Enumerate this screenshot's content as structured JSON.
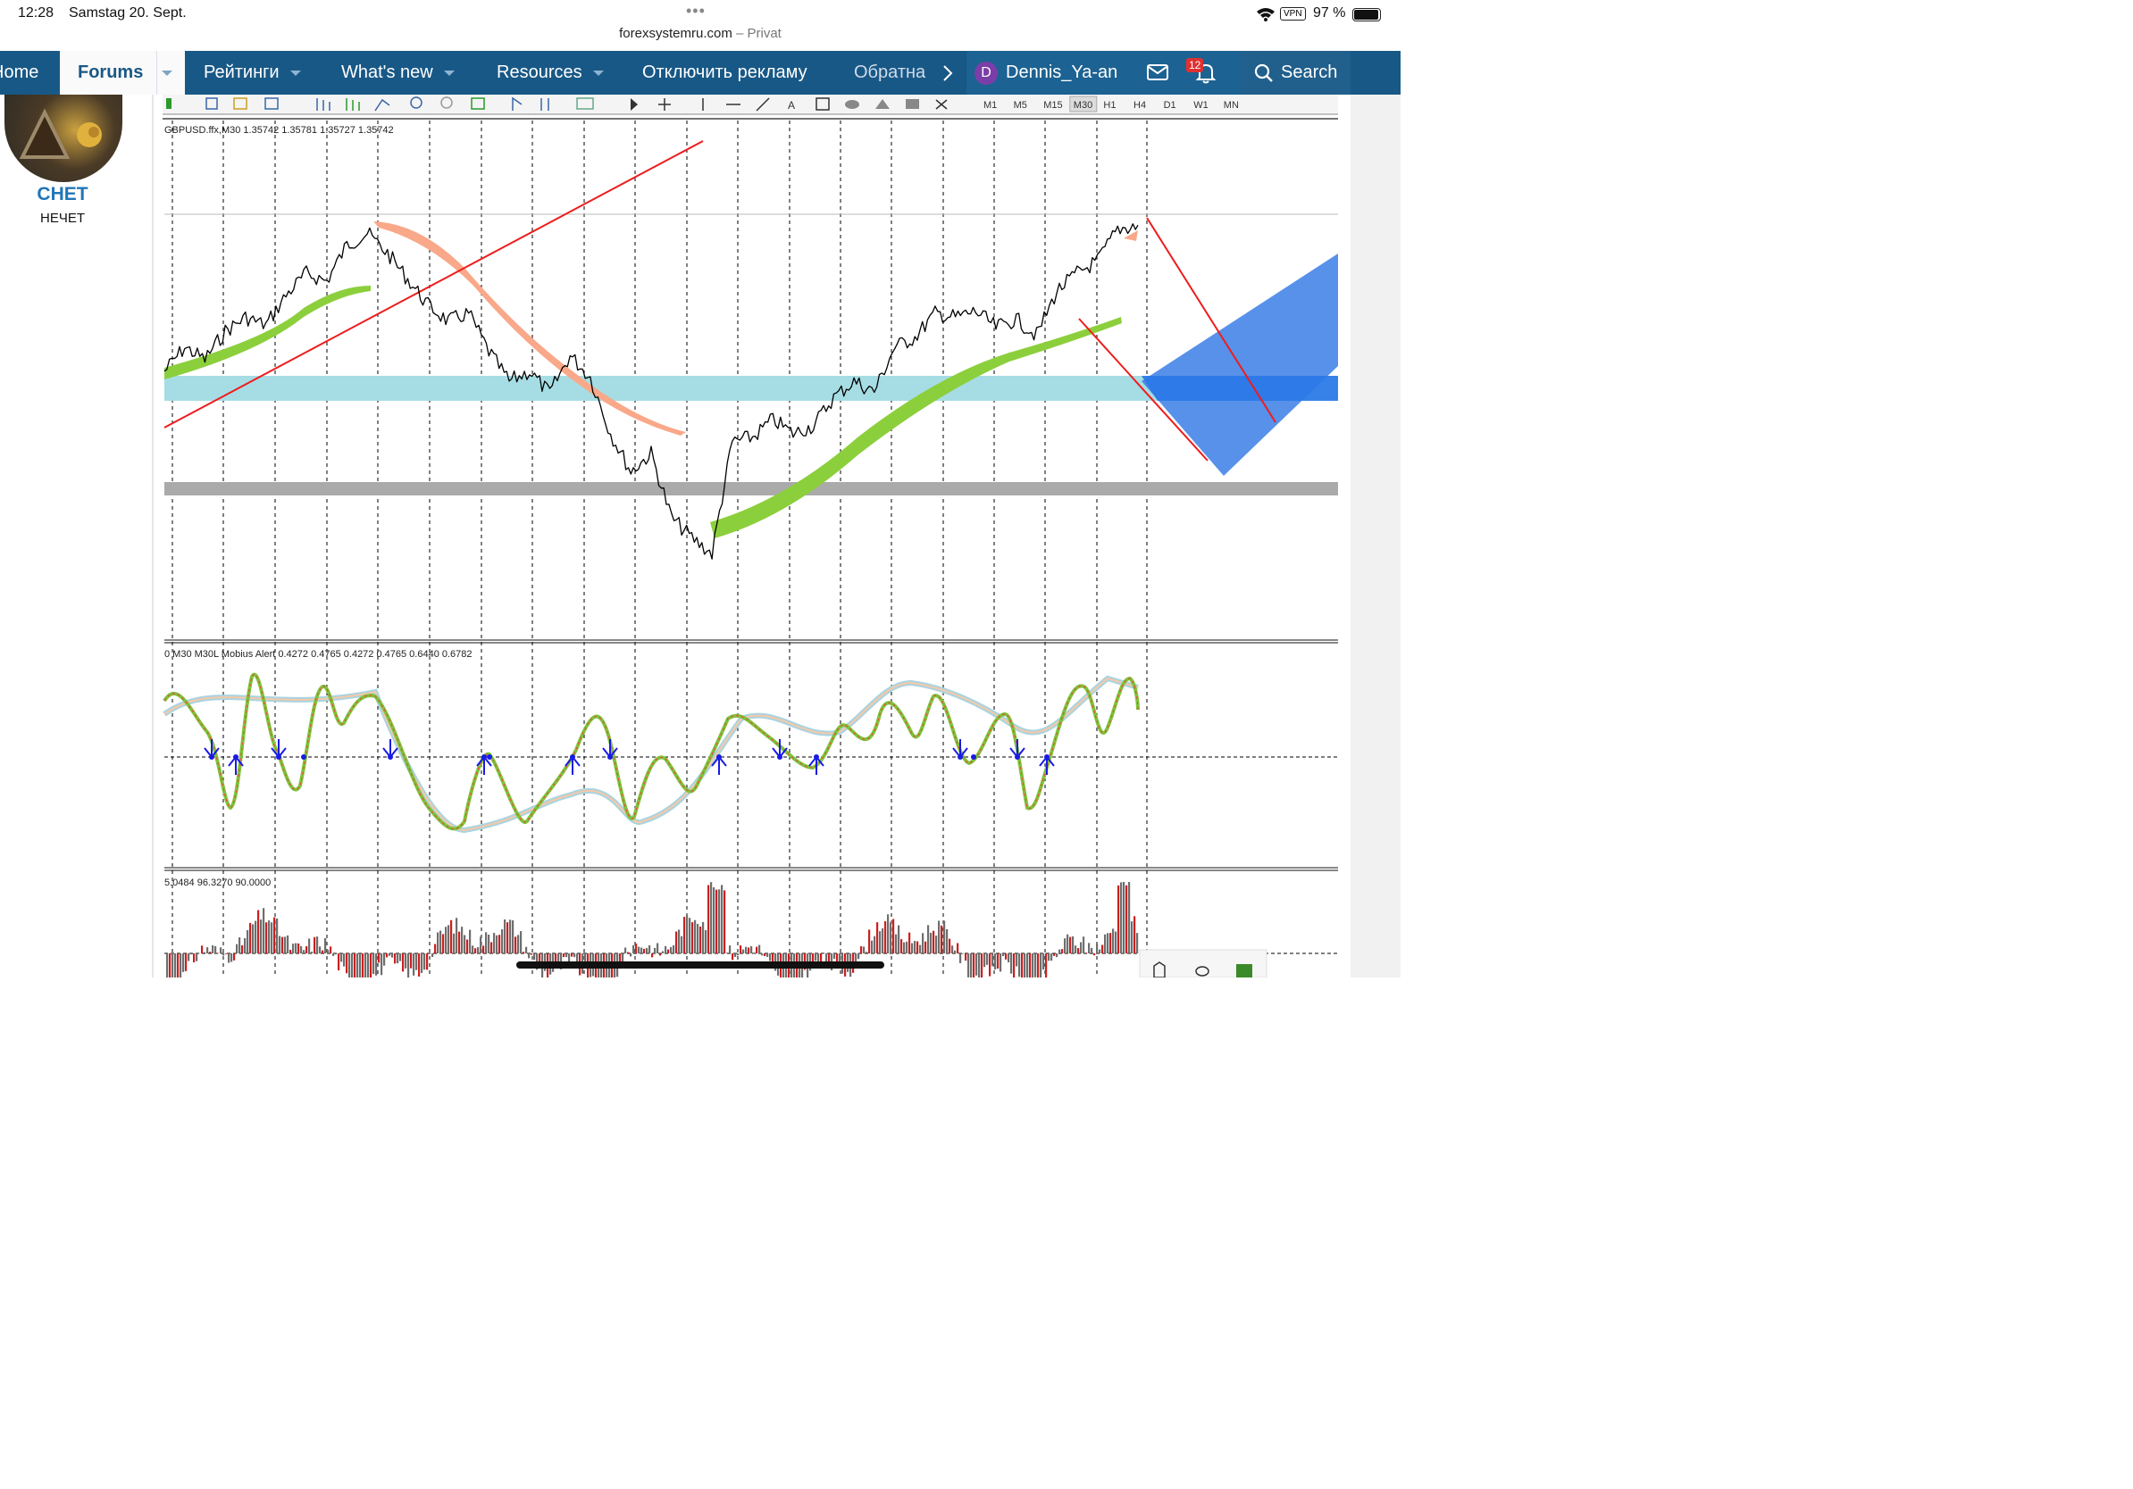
{
  "status_bar": {
    "time": "12:28",
    "date": "Samstag 20. Sept.",
    "url": "forexsystemru.com",
    "url_suffix": "– Privat",
    "vpn": "VPN",
    "battery": "97 %"
  },
  "nav": {
    "home": "Home",
    "forums": "Forums",
    "ratings": "Рейтинги",
    "whats_new": "What's new",
    "resources": "Resources",
    "disable_ads": "Отключить рекламу",
    "feedback": "Обратна",
    "user": "Dennis_Ya-an",
    "user_initial": "D",
    "alerts_count": "12",
    "search": "Search"
  },
  "sidebar": {
    "username": "CHET",
    "user_title": "НЕЧЕТ"
  },
  "toolbar": {
    "timeframes": [
      "M1",
      "M5",
      "M15",
      "M30",
      "H1",
      "H4",
      "D1",
      "W1",
      "MN"
    ],
    "active_timeframe": "M30"
  },
  "chart_data": [
    {
      "type": "line",
      "label": "GBPUSD.ffx,M30  1.35742 1.35781 1.35727 1.35742",
      "series": [
        {
          "name": "close",
          "values": [
            1.3503,
            1.3515,
            1.3509,
            1.3523,
            1.353,
            1.3526,
            1.3541,
            1.3552,
            1.3548,
            1.3566,
            1.3572,
            1.3562,
            1.3549,
            1.3536,
            1.3528,
            1.3532,
            1.3513,
            1.3498,
            1.3503,
            1.3492,
            1.3511,
            1.35,
            1.3472,
            1.3453,
            1.3462,
            1.343,
            1.342,
            1.3412,
            1.3468,
            1.347,
            1.3479,
            1.3472,
            1.3476,
            1.349,
            1.3498,
            1.3493,
            1.3515,
            1.352,
            1.3532,
            1.353,
            1.3533,
            1.3525,
            1.3529,
            1.3521,
            1.3543,
            1.3552,
            1.3558,
            1.3574,
            1.3576
          ]
        }
      ]
    },
    {
      "type": "line",
      "label": "0 M30 M30L Mobius Alert 0.4272 0.4765 0.4272 0.4765 0.6440 0.6782"
    },
    {
      "type": "bar",
      "label": "5.0484 96.3270 90.0000"
    }
  ],
  "colors": {
    "nav_bg": "#185886",
    "user_link": "#1f75b8",
    "price": "#000000",
    "trend_line": "#ee1c1c",
    "green_band": "#8ccf3c",
    "orange_band": "#f9a889",
    "zone_blue": "#a6dde4",
    "zone_gray": "#aaaaaa",
    "projection": "#3a7ee6"
  },
  "icons": {
    "wifi": "wifi-icon",
    "search": "search-icon",
    "mail": "mail-icon",
    "bell": "bell-icon",
    "chevron": "chevron-right-icon"
  }
}
